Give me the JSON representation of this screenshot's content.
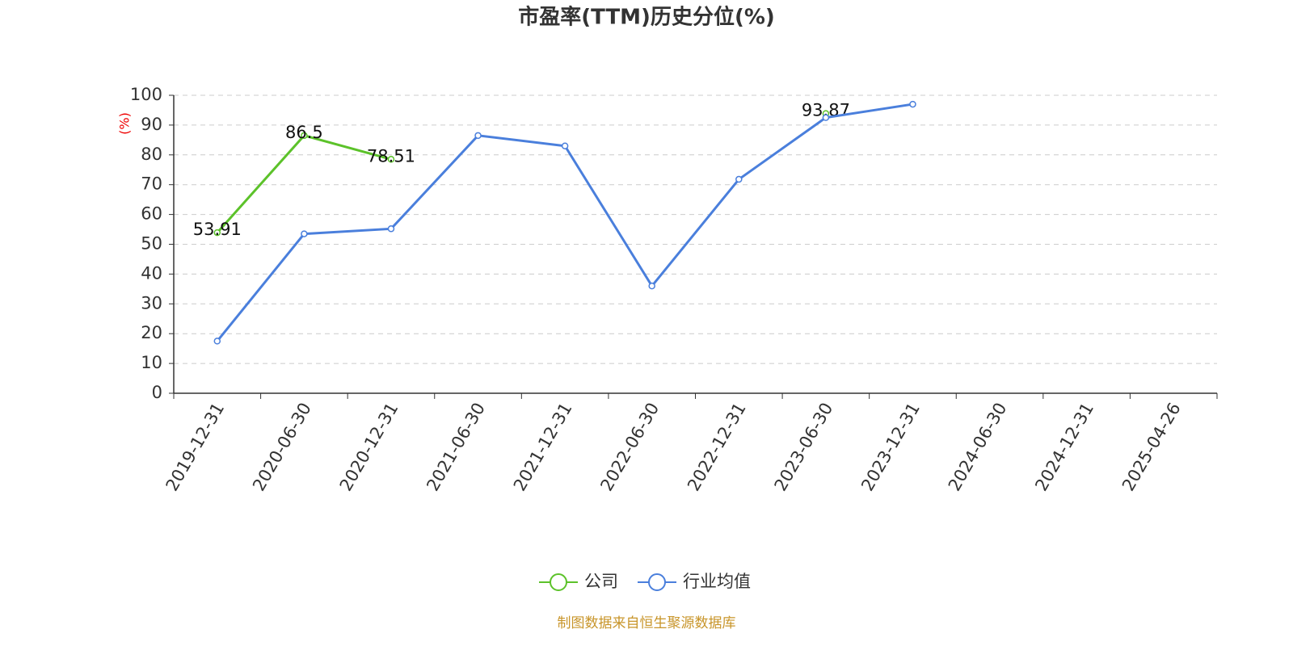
{
  "chart_data": {
    "type": "line",
    "title": "市盈率(TTM)历史分位(%)",
    "y_axis_label": "(%)",
    "categories": [
      "2019-12-31",
      "2020-06-30",
      "2020-12-31",
      "2021-06-30",
      "2021-12-31",
      "2022-06-30",
      "2022-12-31",
      "2023-06-30",
      "2023-12-31",
      "2024-06-30",
      "2024-12-31",
      "2025-04-26"
    ],
    "series": [
      {
        "name": "公司",
        "color": "#5cc22a",
        "values": [
          53.91,
          86.5,
          78.51,
          null,
          null,
          null,
          null,
          93.87,
          null,
          null,
          null,
          null
        ],
        "labels": true
      },
      {
        "name": "行业均值",
        "color": "#4a7fdc",
        "values": [
          17.5,
          53.5,
          55.2,
          86.5,
          83.0,
          36.0,
          71.8,
          92.5,
          97.0,
          null,
          null,
          null
        ],
        "labels": false
      }
    ],
    "ylim": [
      0,
      100
    ],
    "yticks": [
      0,
      10,
      20,
      30,
      40,
      50,
      60,
      70,
      80,
      90,
      100
    ],
    "grid": true,
    "legend": "bottom",
    "source": "制图数据来自恒生聚源数据库"
  }
}
